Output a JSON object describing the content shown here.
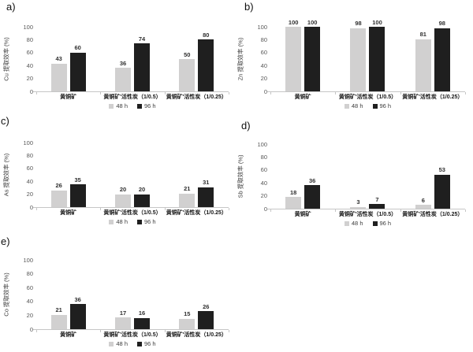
{
  "figure": {
    "background": "#ffffff",
    "series_colors": {
      "h48": "#d1d0d0",
      "h96": "#1f1f1f"
    },
    "axis_line_color": "#c6c6c6"
  },
  "legend": {
    "items": [
      {
        "label": "48 h",
        "color": "#d1d0d0"
      },
      {
        "label": "96 h",
        "color": "#1f1f1f"
      }
    ]
  },
  "chart_data": [
    {
      "type": "bar",
      "panel_label": "a)",
      "ylabel": "Cu 提取效率 (%)",
      "xlabel": "",
      "ylim": [
        0,
        100
      ],
      "yticks": [
        0,
        20,
        40,
        60,
        80,
        100
      ],
      "grid": false,
      "legend_position": "bottom",
      "categories": [
        "黄铜矿",
        "黄铜矿'活性炭（1/0.5）",
        "黄铜矿'活性炭（1/0.25）"
      ],
      "series": [
        {
          "name": "48 h",
          "color": "#d1d0d0",
          "values": [
            43,
            36,
            50
          ]
        },
        {
          "name": "96 h",
          "color": "#1f1f1f",
          "values": [
            60,
            74,
            80
          ]
        }
      ]
    },
    {
      "type": "bar",
      "panel_label": "b)",
      "ylabel": "Zn 提取效率 (%)",
      "xlabel": "",
      "ylim": [
        0,
        100
      ],
      "yticks": [
        0,
        20,
        40,
        60,
        80,
        100
      ],
      "grid": false,
      "legend_position": "bottom",
      "categories": [
        "黄铜矿",
        "黄铜矿'活性炭（1/0.5）",
        "黄铜矿'活性炭（1/0.25）"
      ],
      "series": [
        {
          "name": "48 h",
          "color": "#d1d0d0",
          "values": [
            100,
            98,
            81
          ]
        },
        {
          "name": "96 h",
          "color": "#1f1f1f",
          "values": [
            100,
            100,
            98
          ]
        }
      ]
    },
    {
      "type": "bar",
      "panel_label": "c)",
      "ylabel": "As 提取效率 (%)",
      "xlabel": "",
      "ylim": [
        0,
        100
      ],
      "yticks": [
        0,
        20,
        40,
        60,
        80,
        100
      ],
      "grid": false,
      "legend_position": "bottom",
      "categories": [
        "黄铜矿",
        "黄铜矿'活性炭（1/0.5）",
        "黄铜矿'活性炭（1/0.25）"
      ],
      "series": [
        {
          "name": "48 h",
          "color": "#d1d0d0",
          "values": [
            26,
            20,
            21
          ]
        },
        {
          "name": "96 h",
          "color": "#1f1f1f",
          "values": [
            35,
            20,
            31
          ]
        }
      ]
    },
    {
      "type": "bar",
      "panel_label": "d)",
      "ylabel": "Sb 提取效率 (%)",
      "xlabel": "",
      "ylim": [
        0,
        100
      ],
      "yticks": [
        0,
        20,
        40,
        60,
        80,
        100
      ],
      "grid": false,
      "legend_position": "bottom",
      "categories": [
        "黄铜矿",
        "黄铜矿'活性炭（1/0.5）",
        "黄铜矿'活性炭（1/0.25）"
      ],
      "series": [
        {
          "name": "48 h",
          "color": "#d1d0d0",
          "values": [
            18,
            3,
            6
          ]
        },
        {
          "name": "96 h",
          "color": "#1f1f1f",
          "values": [
            36,
            7,
            53
          ]
        }
      ]
    },
    {
      "type": "bar",
      "panel_label": "e)",
      "ylabel": "Co 提取效率 (%)",
      "xlabel": "",
      "ylim": [
        0,
        100
      ],
      "yticks": [
        0,
        20,
        40,
        60,
        80,
        100
      ],
      "grid": false,
      "legend_position": "bottom",
      "categories": [
        "黄铜矿",
        "黄铜矿'活性炭（1/0.5）",
        "黄铜矿'活性炭（1/0.25）"
      ],
      "series": [
        {
          "name": "48 h",
          "color": "#d1d0d0",
          "values": [
            21,
            17,
            15
          ]
        },
        {
          "name": "96 h",
          "color": "#1f1f1f",
          "values": [
            36,
            16,
            26
          ]
        }
      ]
    }
  ]
}
